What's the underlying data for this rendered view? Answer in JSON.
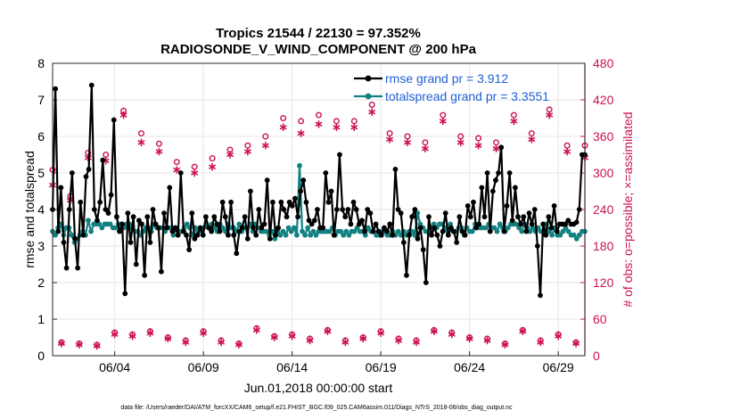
{
  "chart_data": {
    "type": "line",
    "title_line1": "Tropics 21544 / 22130 = 97.352%",
    "title_line2": "RADIOSONDE_V_WIND_COMPONENT @ 200 hPa",
    "xlabel": "Jun.01,2018 00:00:00 start",
    "ylabel_left": "rmse and totalspread",
    "ylabel_right": "# of obs: o=possible; ×=assimilated",
    "footer": "data file: /Users/raeder/DAI/ATM_forcXX/CAM6_setup/f.e21.FHIST_BGC.f09_025.CAM6assim.011/Diags_NTrS_2018-06/obs_diag_output.nc",
    "x_range": [
      0.5,
      30.5
    ],
    "ylim_left": [
      0,
      8
    ],
    "ylim_right": [
      0,
      480
    ],
    "x_ticks": [
      {
        "pos": 4,
        "label": "06/04"
      },
      {
        "pos": 9,
        "label": "06/09"
      },
      {
        "pos": 14,
        "label": "06/14"
      },
      {
        "pos": 19,
        "label": "06/19"
      },
      {
        "pos": 24,
        "label": "06/24"
      },
      {
        "pos": 29,
        "label": "06/29"
      }
    ],
    "y_ticks_left": [
      "0",
      "1",
      "2",
      "3",
      "4",
      "5",
      "6",
      "7",
      "8"
    ],
    "y_ticks_right": [
      "0",
      "60",
      "120",
      "180",
      "240",
      "300",
      "360",
      "420",
      "480"
    ],
    "colors": {
      "rmse": "#000000",
      "spread": "#138080",
      "obs": "#cc1155"
    },
    "legend": [
      {
        "label": "rmse grand pr = 3.912",
        "color": "#000000"
      },
      {
        "label": "totalspread grand pr = 3.3551",
        "color": "#138080"
      }
    ],
    "series": [
      {
        "name": "rmse",
        "axis": "left",
        "values": [
          4.0,
          7.3,
          3.4,
          4.6,
          3.1,
          2.4,
          4.0,
          5.0,
          3.2,
          2.4,
          4.2,
          3.3,
          4.9,
          5.1,
          7.4,
          4.0,
          3.7,
          4.2,
          5.35,
          4.0,
          3.9,
          4.4,
          6.45,
          3.8,
          3.4,
          3.6,
          1.7,
          3.9,
          3.1,
          3.8,
          2.5,
          3.7,
          3.6,
          2.2,
          3.8,
          3.1,
          4.0,
          3.6,
          3.5,
          2.3,
          3.9,
          3.5,
          4.6,
          3.4,
          3.5,
          3.3,
          5.0,
          3.4,
          3.3,
          2.9,
          3.9,
          3.2,
          3.3,
          3.5,
          3.3,
          3.8,
          3.5,
          3.4,
          3.8,
          3.6,
          3.4,
          4.2,
          3.8,
          3.3,
          4.2,
          3.3,
          2.8,
          3.4,
          3.5,
          3.8,
          3.2,
          4.5,
          3.5,
          3.3,
          4.0,
          3.5,
          3.6,
          4.8,
          3.2,
          4.2,
          3.3,
          3.5,
          4.2,
          4.0,
          3.8,
          4.2,
          4.1,
          4.3,
          3.8,
          4.5,
          4.8,
          4.2,
          3.7,
          3.6,
          3.7,
          4.0,
          3.5,
          3.5,
          5.0,
          4.2,
          4.5,
          3.3,
          4.0,
          5.5,
          4.0,
          3.8,
          4.0,
          3.6,
          4.2,
          4.0,
          3.6,
          3.7,
          3.4,
          4.0,
          3.9,
          3.4,
          3.6,
          3.4,
          3.3,
          3.5,
          3.4,
          3.6,
          3.3,
          5.1,
          4.0,
          3.9,
          3.1,
          2.2,
          3.3,
          3.8,
          4.0,
          3.2,
          3.5,
          2.9,
          2.0,
          3.8,
          3.3,
          3.5,
          3.3,
          3.0,
          3.4,
          3.9,
          3.3,
          3.5,
          3.4,
          3.1,
          3.8,
          3.4,
          3.3,
          4.1,
          3.8,
          4.2,
          3.5,
          3.6,
          4.6,
          3.8,
          5.0,
          3.4,
          4.5,
          4.8,
          5.0,
          5.7,
          3.4,
          4.1,
          5.0,
          3.7,
          4.6,
          3.8,
          3.6,
          3.8,
          3.4,
          3.9,
          3.6,
          4.0,
          3.0,
          1.65,
          3.6,
          3.3,
          3.8,
          3.5,
          4.1,
          3.4,
          3.6,
          3.6,
          3.6,
          3.7,
          3.6,
          3.6,
          3.65,
          4.0,
          5.5,
          5.5
        ]
      },
      {
        "name": "totalspread",
        "axis": "left",
        "values": [
          3.4,
          3.3,
          3.5,
          3.6,
          3.3,
          3.5,
          3.5,
          3.3,
          3.1,
          3.2,
          3.3,
          3.4,
          3.3,
          3.7,
          3.4,
          3.6,
          3.6,
          3.6,
          3.5,
          3.6,
          3.6,
          3.6,
          3.5,
          3.5,
          3.6,
          3.6,
          3.5,
          3.6,
          3.6,
          3.5,
          3.4,
          3.4,
          3.3,
          3.4,
          3.5,
          3.5,
          3.4,
          3.6,
          3.5,
          3.5,
          3.5,
          3.4,
          3.5,
          3.5,
          3.3,
          3.5,
          3.4,
          3.4,
          3.5,
          3.6,
          3.5,
          3.3,
          3.5,
          3.4,
          3.4,
          3.5,
          3.6,
          3.5,
          3.6,
          3.5,
          3.4,
          3.6,
          3.5,
          3.4,
          3.6,
          3.5,
          3.5,
          3.4,
          3.6,
          3.4,
          3.5,
          3.5,
          3.6,
          3.4,
          3.6,
          3.5,
          3.4,
          3.4,
          3.4,
          3.3,
          3.4,
          3.2,
          3.4,
          3.3,
          3.4,
          3.3,
          3.5,
          3.4,
          3.5,
          3.3,
          5.2,
          3.4,
          3.3,
          3.5,
          3.3,
          3.4,
          3.3,
          3.4,
          3.4,
          3.4,
          3.4,
          3.4,
          3.5,
          3.3,
          3.4,
          3.4,
          3.3,
          3.4,
          3.3,
          3.4,
          3.4,
          3.5,
          3.4,
          3.4,
          3.3,
          3.5,
          3.4,
          3.4,
          3.3,
          3.3,
          3.4,
          3.4,
          3.3,
          3.3,
          3.4,
          3.3,
          3.4,
          3.3,
          3.4,
          3.3,
          3.4,
          3.4,
          3.3,
          3.9,
          3.6,
          3.5,
          3.4,
          3.4,
          3.5,
          3.6,
          3.5,
          3.6,
          3.6,
          3.5,
          3.4,
          3.6,
          3.4,
          3.4,
          3.5,
          3.5,
          3.3,
          3.5,
          3.4,
          3.4,
          3.6,
          3.5,
          3.5,
          3.5,
          3.5,
          3.6,
          3.5,
          3.5,
          3.4,
          3.6,
          3.5,
          3.4,
          3.5,
          3.6,
          3.6,
          3.6,
          3.5,
          3.4,
          3.6,
          3.5,
          3.4,
          3.5,
          3.4,
          3.5,
          3.4,
          3.4,
          3.6,
          3.4,
          3.3,
          3.5,
          3.3,
          3.3,
          3.4,
          3.5,
          3.4,
          3.3,
          3.3,
          3.2,
          3.3,
          3.4,
          3.4
        ]
      },
      {
        "name": "obs_possible_00Z",
        "axis": "right",
        "times": [
          0.5,
          1.5,
          2.5,
          3.5,
          4.5,
          5.5,
          6.5,
          7.5,
          8.5,
          9.5,
          10.5,
          11.5,
          12.5,
          13.5,
          14.5,
          15.5,
          16.5,
          17.5,
          18.5,
          19.5,
          20.5,
          21.5,
          22.5,
          23.5,
          24.5,
          25.5,
          26.5,
          27.5,
          28.5,
          29.5,
          30.5
        ],
        "values": [
          305,
          262,
          333,
          330,
          402,
          365,
          348,
          318,
          310,
          324,
          338,
          345,
          360,
          390,
          385,
          395,
          385,
          385,
          412,
          365,
          360,
          350,
          395,
          360,
          357,
          350,
          395,
          365,
          404,
          345,
          345
        ]
      },
      {
        "name": "obs_assimilated_00Z",
        "axis": "right",
        "times": [
          0.5,
          1.5,
          2.5,
          3.5,
          4.5,
          5.5,
          6.5,
          7.5,
          8.5,
          9.5,
          10.5,
          11.5,
          12.5,
          13.5,
          14.5,
          15.5,
          16.5,
          17.5,
          18.5,
          19.5,
          20.5,
          21.5,
          22.5,
          23.5,
          24.5,
          25.5,
          26.5,
          27.5,
          28.5,
          29.5,
          30.5
        ],
        "values": [
          280,
          255,
          325,
          320,
          395,
          350,
          335,
          305,
          300,
          310,
          330,
          335,
          345,
          375,
          365,
          380,
          375,
          375,
          400,
          355,
          350,
          340,
          385,
          350,
          345,
          340,
          385,
          355,
          395,
          335,
          325
        ]
      },
      {
        "name": "obs_possible_12Z",
        "axis": "right",
        "times": [
          1,
          2,
          3,
          4,
          5,
          6,
          7,
          8,
          9,
          10,
          11,
          12,
          13,
          14,
          15,
          16,
          17,
          18,
          19,
          20,
          21,
          22,
          23,
          24,
          25,
          26,
          27,
          28,
          29,
          30
        ],
        "values": [
          22,
          20,
          18,
          38,
          35,
          40,
          30,
          25,
          40,
          25,
          20,
          45,
          32,
          35,
          28,
          42,
          25,
          30,
          40,
          28,
          25,
          42,
          38,
          30,
          28,
          20,
          42,
          25,
          35,
          22
        ]
      },
      {
        "name": "obs_assimilated_12Z",
        "axis": "right",
        "times": [
          1,
          2,
          3,
          4,
          5,
          6,
          7,
          8,
          9,
          10,
          11,
          12,
          13,
          14,
          15,
          16,
          17,
          18,
          19,
          20,
          21,
          22,
          23,
          24,
          25,
          26,
          27,
          28,
          29,
          30
        ],
        "values": [
          20,
          18,
          16,
          35,
          32,
          37,
          28,
          22,
          37,
          22,
          18,
          42,
          30,
          32,
          25,
          40,
          22,
          28,
          37,
          25,
          22,
          40,
          35,
          28,
          25,
          18,
          40,
          22,
          32,
          20
        ]
      }
    ]
  }
}
